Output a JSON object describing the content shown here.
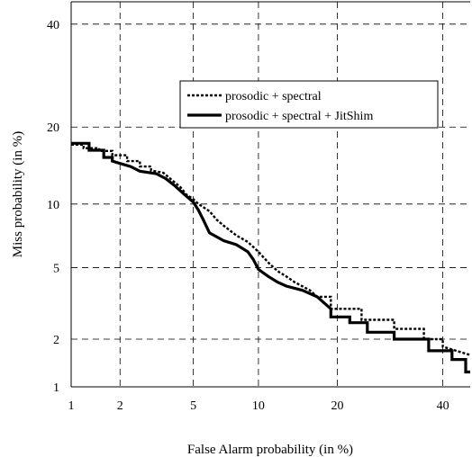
{
  "chart_data": {
    "type": "line",
    "title": "",
    "xlabel": "False Alarm probability (in %)",
    "ylabel": "Miss probability (in %)",
    "x_scale": "normal-deviate (DET)",
    "y_scale": "normal-deviate (DET)",
    "xlim": [
      1,
      46
    ],
    "ylim": [
      1,
      45
    ],
    "x_ticks": [
      "1",
      "2",
      "5",
      "10",
      "20",
      "40"
    ],
    "y_ticks": [
      "1",
      "2",
      "5",
      "10",
      "20",
      "40"
    ],
    "grid": "dashed",
    "legend_position": "upper-center",
    "series": [
      {
        "name": "prosodic + spectral",
        "style": "dotted",
        "color": "#000000",
        "points": [
          [
            1.0,
            17.3
          ],
          [
            1.2,
            17.3
          ],
          [
            1.2,
            16.8
          ],
          [
            1.5,
            16.8
          ],
          [
            1.5,
            16.4
          ],
          [
            1.8,
            16.4
          ],
          [
            1.8,
            15.8
          ],
          [
            2.2,
            15.8
          ],
          [
            2.2,
            15.0
          ],
          [
            2.6,
            15.0
          ],
          [
            2.6,
            14.3
          ],
          [
            3.0,
            14.3
          ],
          [
            3.0,
            13.8
          ],
          [
            3.5,
            13.5
          ],
          [
            3.8,
            12.8
          ],
          [
            4.3,
            11.8
          ],
          [
            4.6,
            11.0
          ],
          [
            5.0,
            10.5
          ],
          [
            5.3,
            10.0
          ],
          [
            6.0,
            9.3
          ],
          [
            6.5,
            8.5
          ],
          [
            7.0,
            8.0
          ],
          [
            8.0,
            7.2
          ],
          [
            9.0,
            6.7
          ],
          [
            10.0,
            6.0
          ],
          [
            11.0,
            5.3
          ],
          [
            12.0,
            4.8
          ],
          [
            13.0,
            4.5
          ],
          [
            14.0,
            4.2
          ],
          [
            16.0,
            3.8
          ],
          [
            17.0,
            3.5
          ],
          [
            19.0,
            3.5
          ],
          [
            19.0,
            3.0
          ],
          [
            24.0,
            3.0
          ],
          [
            24.0,
            2.6
          ],
          [
            30.0,
            2.6
          ],
          [
            30.0,
            2.3
          ],
          [
            36.0,
            2.3
          ],
          [
            36.0,
            2.0
          ],
          [
            40.0,
            2.0
          ],
          [
            40.0,
            1.8
          ],
          [
            46.0,
            1.6
          ]
        ]
      },
      {
        "name": "prosodic + spectral + JitShim",
        "style": "solid",
        "color": "#000000",
        "points": [
          [
            1.0,
            17.5
          ],
          [
            1.3,
            17.5
          ],
          [
            1.3,
            16.5
          ],
          [
            1.6,
            16.5
          ],
          [
            1.6,
            15.5
          ],
          [
            1.8,
            15.5
          ],
          [
            1.8,
            15.0
          ],
          [
            2.3,
            14.3
          ],
          [
            2.6,
            13.7
          ],
          [
            3.2,
            13.4
          ],
          [
            3.6,
            12.8
          ],
          [
            4.0,
            12.0
          ],
          [
            4.5,
            11.0
          ],
          [
            5.0,
            10.2
          ],
          [
            5.3,
            9.4
          ],
          [
            5.6,
            8.5
          ],
          [
            6.0,
            7.4
          ],
          [
            7.0,
            6.8
          ],
          [
            8.0,
            6.5
          ],
          [
            9.0,
            6.0
          ],
          [
            9.5,
            5.5
          ],
          [
            10.0,
            4.9
          ],
          [
            11.0,
            4.5
          ],
          [
            12.0,
            4.2
          ],
          [
            13.0,
            4.0
          ],
          [
            15.0,
            3.8
          ],
          [
            17.0,
            3.5
          ],
          [
            19.0,
            3.0
          ],
          [
            19.0,
            2.7
          ],
          [
            22.0,
            2.7
          ],
          [
            22.0,
            2.5
          ],
          [
            25.0,
            2.5
          ],
          [
            25.0,
            2.2
          ],
          [
            30.0,
            2.2
          ],
          [
            30.0,
            2.0
          ],
          [
            37.0,
            2.0
          ],
          [
            37.0,
            1.7
          ],
          [
            42.0,
            1.7
          ],
          [
            42.0,
            1.5
          ],
          [
            45.0,
            1.5
          ],
          [
            45.0,
            1.25
          ],
          [
            46.0,
            1.25
          ]
        ]
      }
    ]
  }
}
